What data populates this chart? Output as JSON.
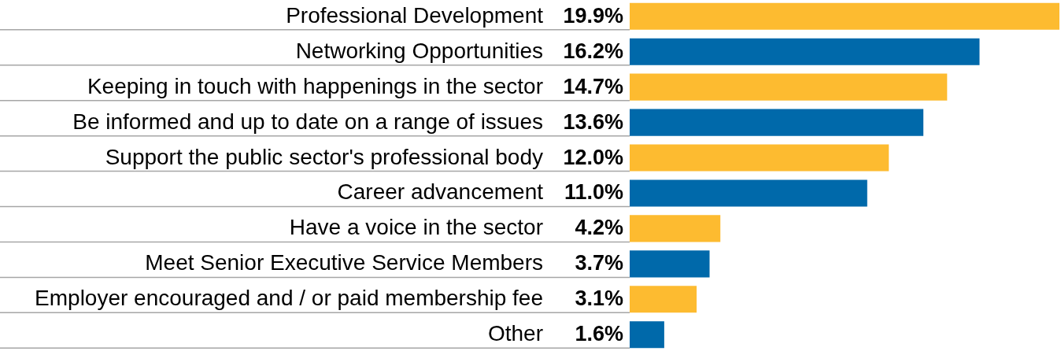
{
  "chart_data": {
    "type": "bar",
    "orientation": "horizontal",
    "grid": "y",
    "categories": [
      "Professional Development",
      "Networking Opportunities",
      "Keeping in touch with happenings in the sector",
      "Be informed and up to date on a range of issues",
      "Support the public sector's professional body",
      "Career advancement",
      "Have a voice in the sector",
      "Meet Senior Executive Service Members",
      "Employer encouraged and / or paid membership fee",
      "Other"
    ],
    "values": [
      19.9,
      16.2,
      14.7,
      13.6,
      12.0,
      11.0,
      4.2,
      3.7,
      3.1,
      1.6
    ],
    "value_labels": [
      "19.9%",
      "16.2%",
      "14.7%",
      "13.6%",
      "12.0%",
      "11.0%",
      "4.2%",
      "3.7%",
      "3.1%",
      "1.6%"
    ],
    "colors": [
      "#fdbb30",
      "#0069aa",
      "#fdbb30",
      "#0069aa",
      "#fdbb30",
      "#0069aa",
      "#fdbb30",
      "#0069aa",
      "#fdbb30",
      "#0069aa"
    ]
  }
}
